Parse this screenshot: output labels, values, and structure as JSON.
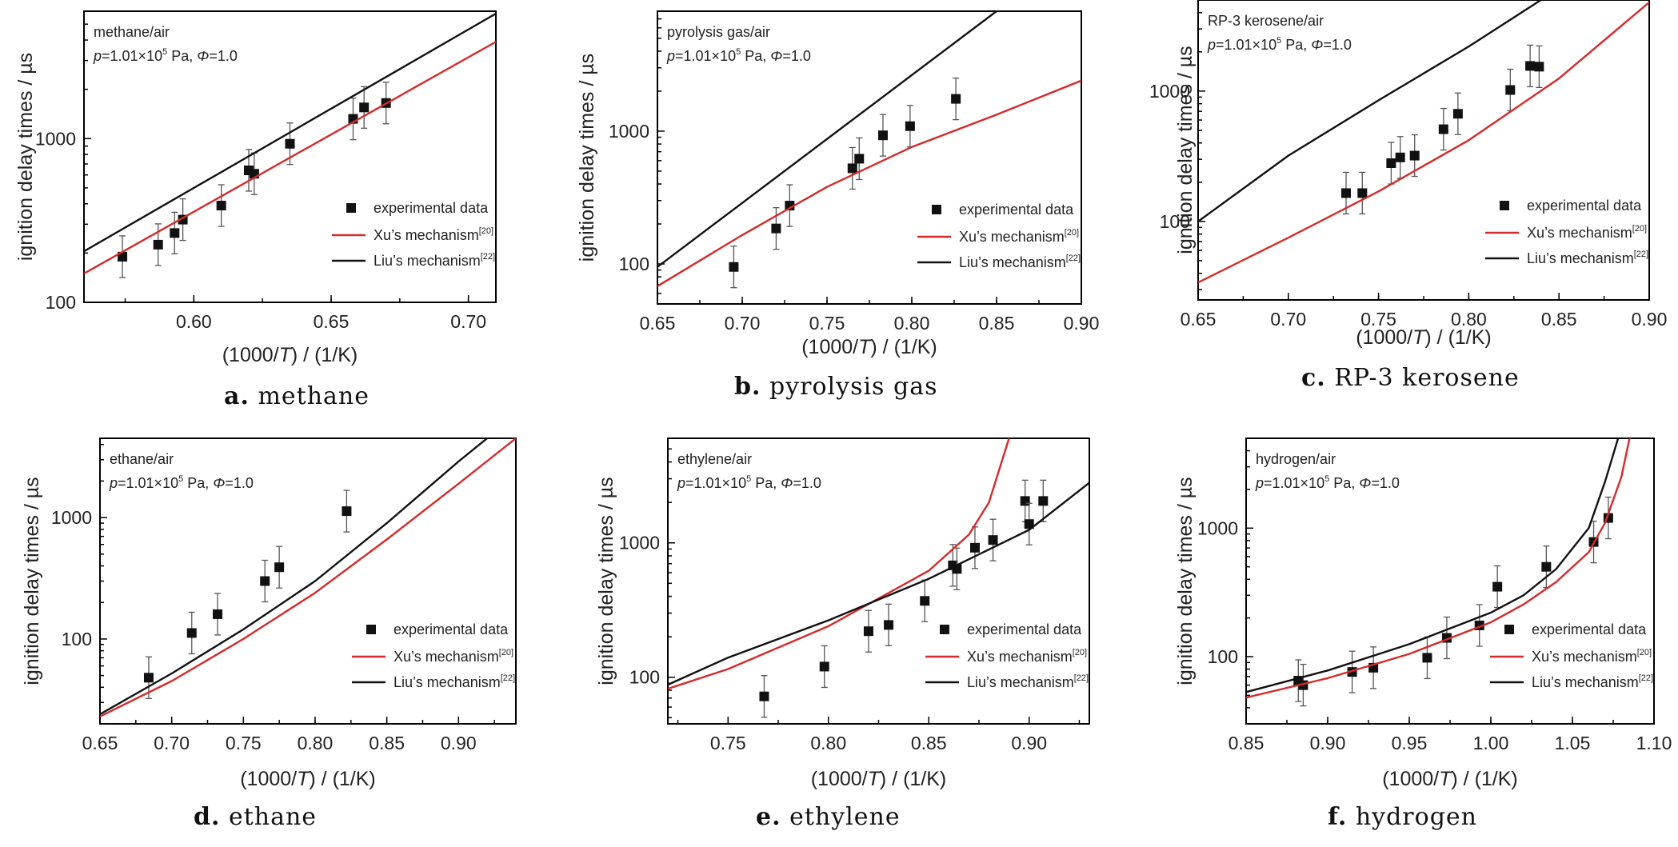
{
  "figure": {
    "y_label": "ignition delay times / µs",
    "x_label_prefix": "(1000/",
    "x_label_var": "T",
    "x_label_suffix": ") / (1/K)",
    "legend": {
      "experimental": "experimental data",
      "xu_prefix": "Xu’s mechanism",
      "xu_ref": "[20]",
      "liu_prefix": "Liu’s mechanism",
      "liu_ref": "[22]"
    },
    "colors": {
      "xu": "#d42a2a",
      "liu": "#111111",
      "experimental": "#111111"
    }
  },
  "chart_data": [
    {
      "type": "line",
      "id": "a",
      "caption_letter": "a.",
      "caption_text": "methane",
      "title": "methane/air",
      "condition": {
        "p_prefix": "p",
        "p_value": "=1.01×10",
        "p_exp": "5",
        "p_unit": " Pa, ",
        "phi": "Φ",
        "phi_value": "=1.0"
      },
      "xlim": [
        0.56,
        0.71
      ],
      "ylim": [
        100,
        6000
      ],
      "yscale": "log",
      "xticks": [
        0.6,
        0.65,
        0.7
      ],
      "xtick_labels": [
        "0.60",
        "0.65",
        "0.70"
      ],
      "yticks": [
        100,
        1000
      ],
      "ytick_labels": [
        "100",
        "1000"
      ],
      "legend_position": "lower-right",
      "series": [
        {
          "name": "experimental data",
          "kind": "points",
          "x": [
            0.574,
            0.587,
            0.593,
            0.596,
            0.61,
            0.62,
            0.622,
            0.635,
            0.658,
            0.662,
            0.67
          ],
          "y": [
            190,
            225,
            265,
            320,
            390,
            640,
            610,
            930,
            1320,
            1550,
            1650
          ]
        },
        {
          "name": "Xu’s mechanism",
          "kind": "line",
          "x": [
            0.56,
            0.71
          ],
          "y": [
            150,
            3900
          ]
        },
        {
          "name": "Liu’s mechanism",
          "kind": "line",
          "x": [
            0.56,
            0.71
          ],
          "y": [
            205,
            5800
          ]
        }
      ]
    },
    {
      "type": "line",
      "id": "b",
      "caption_letter": "b.",
      "caption_text": "pyrolysis gas",
      "title": "pyrolysis gas/air",
      "condition": {
        "p_prefix": "p",
        "p_value": "=1.01×10",
        "p_exp": "5",
        "p_unit": " Pa, ",
        "phi": "Φ",
        "phi_value": "=1.0"
      },
      "xlim": [
        0.65,
        0.9
      ],
      "ylim": [
        50,
        8000
      ],
      "yscale": "log",
      "xticks": [
        0.65,
        0.7,
        0.75,
        0.8,
        0.85,
        0.9
      ],
      "xtick_labels": [
        "0.65",
        "0.70",
        "0.75",
        "0.80",
        "0.85",
        "0.90"
      ],
      "yticks": [
        100,
        1000
      ],
      "ytick_labels": [
        "100",
        "1000"
      ],
      "legend_position": "lower-right",
      "series": [
        {
          "name": "experimental data",
          "kind": "points",
          "x": [
            0.695,
            0.72,
            0.728,
            0.765,
            0.769,
            0.783,
            0.799,
            0.826
          ],
          "y": [
            95,
            185,
            275,
            525,
            620,
            930,
            1090,
            1750
          ]
        },
        {
          "name": "Xu’s mechanism",
          "kind": "line",
          "x": [
            0.65,
            0.7,
            0.75,
            0.8,
            0.85,
            0.9
          ],
          "y": [
            68,
            165,
            380,
            760,
            1330,
            2400
          ]
        },
        {
          "name": "Liu’s mechanism",
          "kind": "line",
          "x": [
            0.65,
            0.85
          ],
          "y": [
            95,
            8000
          ]
        }
      ]
    },
    {
      "type": "line",
      "id": "c",
      "caption_letter": "c.",
      "caption_text": "RP-3 kerosene",
      "title": "RP-3 kerosene/air",
      "condition": {
        "p_prefix": "p",
        "p_value": "=1.01×10",
        "p_exp": "5",
        "p_unit": " Pa, ",
        "phi": "Φ",
        "phi_value": "=1.0"
      },
      "xlim": [
        0.65,
        0.9
      ],
      "ylim": [
        25,
        5000
      ],
      "yscale": "log",
      "xticks": [
        0.65,
        0.7,
        0.75,
        0.8,
        0.85,
        0.9
      ],
      "xtick_labels": [
        "0.65",
        "0.70",
        "0.75",
        "0.80",
        "0.85",
        "0.90"
      ],
      "yticks": [
        100,
        1000
      ],
      "ytick_labels": [
        "100",
        "1000"
      ],
      "legend_position": "lower-right",
      "series": [
        {
          "name": "experimental data",
          "kind": "points",
          "x": [
            0.732,
            0.741,
            0.757,
            0.762,
            0.77,
            0.786,
            0.794,
            0.823,
            0.834,
            0.839
          ],
          "y": [
            165,
            165,
            280,
            310,
            320,
            510,
            670,
            1020,
            1560,
            1540
          ]
        },
        {
          "name": "Xu’s mechanism",
          "kind": "line",
          "x": [
            0.65,
            0.7,
            0.75,
            0.8,
            0.85,
            0.9
          ],
          "y": [
            34,
            75,
            170,
            420,
            1250,
            4800
          ]
        },
        {
          "name": "Liu’s mechanism",
          "kind": "line",
          "x": [
            0.65,
            0.7,
            0.75,
            0.8,
            0.84
          ],
          "y": [
            100,
            320,
            850,
            2200,
            5000
          ]
        }
      ]
    },
    {
      "type": "line",
      "id": "d",
      "caption_letter": "d.",
      "caption_text": "ethane",
      "title": "ethane/air",
      "condition": {
        "p_prefix": "p",
        "p_value": "=1.01×10",
        "p_exp": "5",
        "p_unit": " Pa, ",
        "phi": "Φ",
        "phi_value": "=1.0"
      },
      "xlim": [
        0.65,
        0.94
      ],
      "ylim": [
        20,
        4500
      ],
      "yscale": "log",
      "xticks": [
        0.65,
        0.7,
        0.75,
        0.8,
        0.85,
        0.9
      ],
      "xtick_labels": [
        "0.65",
        "0.70",
        "0.75",
        "0.80",
        "0.85",
        "0.90"
      ],
      "yticks": [
        100,
        1000
      ],
      "ytick_labels": [
        "100",
        "1000"
      ],
      "legend_position": "lower-right",
      "series": [
        {
          "name": "experimental data",
          "kind": "points",
          "x": [
            0.684,
            0.714,
            0.732,
            0.765,
            0.775,
            0.822
          ],
          "y": [
            48,
            112,
            160,
            300,
            390,
            1130
          ]
        },
        {
          "name": "Xu’s mechanism",
          "kind": "line",
          "x": [
            0.65,
            0.7,
            0.75,
            0.8,
            0.85,
            0.9,
            0.94
          ],
          "y": [
            23,
            45,
            100,
            240,
            660,
            1900,
            4500
          ]
        },
        {
          "name": "Liu’s mechanism",
          "kind": "line",
          "x": [
            0.65,
            0.7,
            0.75,
            0.8,
            0.85,
            0.9,
            0.92
          ],
          "y": [
            24,
            52,
            120,
            300,
            900,
            2900,
            4500
          ]
        }
      ]
    },
    {
      "type": "line",
      "id": "e",
      "caption_letter": "e.",
      "caption_text": "ethylene",
      "title": "ethylene/air",
      "condition": {
        "p_prefix": "p",
        "p_value": "=1.01×10",
        "p_exp": "5",
        "p_unit": " Pa, ",
        "phi": "Φ",
        "phi_value": "=1.0"
      },
      "xlim": [
        0.72,
        0.93
      ],
      "ylim": [
        45,
        6000
      ],
      "yscale": "log",
      "xticks": [
        0.75,
        0.8,
        0.85,
        0.9
      ],
      "xtick_labels": [
        "0.75",
        "0.80",
        "0.85",
        "0.90"
      ],
      "yticks": [
        100,
        1000
      ],
      "ytick_labels": [
        "100",
        "1000"
      ],
      "legend_position": "lower-right",
      "series": [
        {
          "name": "experimental data",
          "kind": "points",
          "x": [
            0.768,
            0.798,
            0.82,
            0.83,
            0.848,
            0.862,
            0.864,
            0.873,
            0.882,
            0.898,
            0.9,
            0.907
          ],
          "y": [
            72,
            120,
            220,
            245,
            370,
            680,
            640,
            920,
            1050,
            2050,
            1380,
            2050
          ]
        },
        {
          "name": "Xu’s mechanism",
          "kind": "line",
          "x": [
            0.72,
            0.75,
            0.8,
            0.85,
            0.87,
            0.88,
            0.89
          ],
          "y": [
            82,
            115,
            240,
            620,
            1150,
            2000,
            6000
          ]
        },
        {
          "name": "Liu’s mechanism",
          "kind": "line",
          "x": [
            0.72,
            0.75,
            0.8,
            0.85,
            0.9,
            0.93
          ],
          "y": [
            88,
            140,
            265,
            540,
            1250,
            2800
          ]
        }
      ]
    },
    {
      "type": "line",
      "id": "f",
      "caption_letter": "f.",
      "caption_text": "hydrogen",
      "title": "hydrogen/air",
      "condition": {
        "p_prefix": "p",
        "p_value": "=1.01×10",
        "p_exp": "5",
        "p_unit": " Pa, ",
        "phi": "Φ",
        "phi_value": "=1.0"
      },
      "xlim": [
        0.85,
        1.1
      ],
      "ylim": [
        30,
        5000
      ],
      "yscale": "log",
      "xticks": [
        0.85,
        0.9,
        0.95,
        1.0,
        1.05,
        1.1
      ],
      "xtick_labels": [
        "0.85",
        "0.90",
        "0.95",
        "1.00",
        "1.05",
        "1.10"
      ],
      "yticks": [
        100,
        1000
      ],
      "ytick_labels": [
        "100",
        "1000"
      ],
      "legend_position": "lower-right",
      "series": [
        {
          "name": "experimental data",
          "kind": "points",
          "x": [
            0.882,
            0.885,
            0.915,
            0.928,
            0.961,
            0.973,
            0.993,
            1.004,
            1.034,
            1.063,
            1.072
          ],
          "y": [
            65,
            60,
            76,
            82,
            98,
            140,
            175,
            350,
            500,
            780,
            1200
          ]
        },
        {
          "name": "Xu’s mechanism",
          "kind": "line",
          "x": [
            0.85,
            0.9,
            0.95,
            1.0,
            1.02,
            1.04,
            1.06,
            1.07,
            1.08,
            1.085
          ],
          "y": [
            48,
            68,
            105,
            185,
            255,
            380,
            650,
            1100,
            2500,
            5000
          ]
        },
        {
          "name": "Liu’s mechanism",
          "kind": "line",
          "x": [
            0.85,
            0.9,
            0.95,
            1.0,
            1.02,
            1.04,
            1.06,
            1.07,
            1.078
          ],
          "y": [
            53,
            78,
            125,
            220,
            300,
            480,
            1000,
            2300,
            5000
          ]
        }
      ]
    }
  ]
}
